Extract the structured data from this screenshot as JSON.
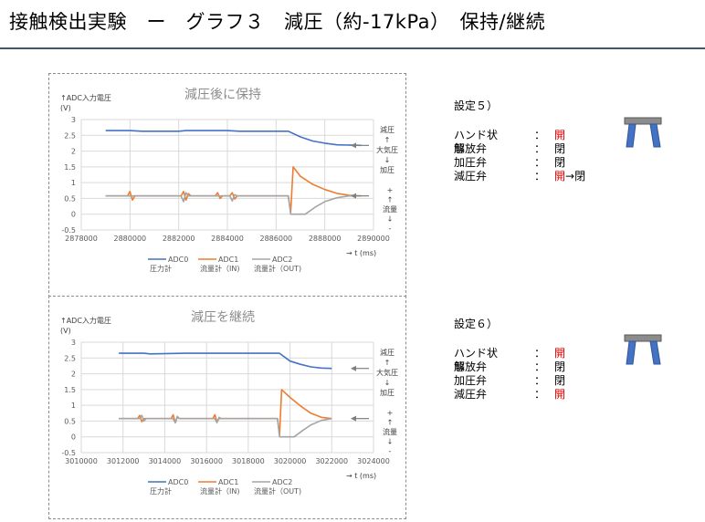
{
  "title": "接触検出実験　ー　グラフ３　減圧（約-17kPa）　保持/継続",
  "colors": {
    "adc0": "#4472c4",
    "adc1": "#ed7d31",
    "adc2": "#a5a5a5",
    "grid": "#d9d9d9",
    "accent_red": "#e00000",
    "hand_gray": "#8c8c8c",
    "hand_blue": "#4472c4"
  },
  "chart_data": [
    {
      "type": "line",
      "title": "減圧後に保持",
      "ylabel": "↑ADC入力電圧\n(V)",
      "xlabel": "→  t (ms)",
      "xlim": [
        2878000,
        2890000
      ],
      "ylim": [
        -0.5,
        3
      ],
      "xticks": [
        "2878000",
        "2880000",
        "2882000",
        "2884000",
        "2886000",
        "2888000",
        "2890000"
      ],
      "yticks": [
        "-0.5",
        "0",
        "0.5",
        "1",
        "1.5",
        "2",
        "2.5",
        "3"
      ],
      "legend": [
        "ADC0\n圧力計",
        "ADC1\n流量計（IN)",
        "ADC2\n流量計（OUT)"
      ],
      "right_annotations": [
        "減圧\n↑\n大気圧\n↓\n加圧",
        "+\n↑\n流量\n↓\n-"
      ],
      "grid": true,
      "series": [
        {
          "name": "ADC0",
          "points": [
            [
              2879000,
              2.65
            ],
            [
              2880000,
              2.65
            ],
            [
              2880500,
              2.63
            ],
            [
              2882000,
              2.63
            ],
            [
              2882300,
              2.65
            ],
            [
              2884000,
              2.65
            ],
            [
              2884500,
              2.63
            ],
            [
              2886500,
              2.63
            ],
            [
              2887000,
              2.45
            ],
            [
              2887500,
              2.32
            ],
            [
              2888000,
              2.25
            ],
            [
              2888500,
              2.2
            ],
            [
              2889500,
              2.18
            ]
          ]
        },
        {
          "name": "ADC1",
          "points": [
            [
              2879000,
              0.58
            ],
            [
              2879900,
              0.58
            ],
            [
              2880000,
              0.72
            ],
            [
              2880100,
              0.45
            ],
            [
              2880200,
              0.58
            ],
            [
              2882100,
              0.58
            ],
            [
              2882200,
              0.72
            ],
            [
              2882300,
              0.45
            ],
            [
              2882400,
              0.65
            ],
            [
              2882500,
              0.58
            ],
            [
              2883500,
              0.58
            ],
            [
              2883600,
              0.68
            ],
            [
              2883700,
              0.5
            ],
            [
              2883800,
              0.58
            ],
            [
              2884100,
              0.58
            ],
            [
              2884200,
              0.68
            ],
            [
              2884300,
              0.48
            ],
            [
              2884400,
              0.58
            ],
            [
              2886500,
              0.58
            ],
            [
              2886600,
              0.05
            ],
            [
              2886700,
              1.5
            ],
            [
              2887000,
              1.2
            ],
            [
              2887500,
              0.95
            ],
            [
              2888000,
              0.78
            ],
            [
              2888500,
              0.66
            ],
            [
              2889000,
              0.6
            ],
            [
              2889500,
              0.58
            ]
          ]
        },
        {
          "name": "ADC2",
          "points": [
            [
              2879000,
              0.58
            ],
            [
              2882100,
              0.58
            ],
            [
              2882200,
              0.4
            ],
            [
              2882300,
              0.68
            ],
            [
              2882400,
              0.58
            ],
            [
              2884100,
              0.58
            ],
            [
              2884200,
              0.42
            ],
            [
              2884300,
              0.62
            ],
            [
              2884400,
              0.58
            ],
            [
              2886500,
              0.58
            ],
            [
              2886600,
              0.0
            ],
            [
              2887200,
              0.0
            ],
            [
              2887600,
              0.22
            ],
            [
              2888000,
              0.4
            ],
            [
              2888500,
              0.52
            ],
            [
              2889000,
              0.58
            ],
            [
              2889500,
              0.58
            ]
          ]
        }
      ]
    },
    {
      "type": "line",
      "title": "減圧を継続",
      "ylabel": "↑ADC入力電圧\n(V)",
      "xlabel": "→  t (ms)",
      "xlim": [
        3010000,
        3024000
      ],
      "ylim": [
        -0.5,
        3
      ],
      "xticks": [
        "3010000",
        "3012000",
        "3014000",
        "3016000",
        "3018000",
        "3020000",
        "3022000",
        "3024000"
      ],
      "yticks": [
        "-0.5",
        "0",
        "0.5",
        "1",
        "1.5",
        "2",
        "2.5",
        "3"
      ],
      "legend": [
        "ADC0\n圧力計",
        "ADC1\n流量計（IN)",
        "ADC2\n流量計（OUT)"
      ],
      "right_annotations": [
        "減圧\n↑\n大気圧\n↓\n加圧",
        "+\n↑\n流量\n↓\n-"
      ],
      "grid": true,
      "series": [
        {
          "name": "ADC0",
          "points": [
            [
              3011800,
              2.65
            ],
            [
              3013000,
              2.65
            ],
            [
              3013300,
              2.63
            ],
            [
              3015000,
              2.65
            ],
            [
              3017000,
              2.65
            ],
            [
              3019000,
              2.65
            ],
            [
              3019500,
              2.65
            ],
            [
              3020000,
              2.4
            ],
            [
              3020500,
              2.3
            ],
            [
              3021000,
              2.22
            ],
            [
              3021500,
              2.18
            ],
            [
              3022000,
              2.17
            ]
          ]
        },
        {
          "name": "ADC1",
          "points": [
            [
              3011800,
              0.58
            ],
            [
              3012700,
              0.58
            ],
            [
              3012800,
              0.68
            ],
            [
              3012900,
              0.48
            ],
            [
              3013000,
              0.58
            ],
            [
              3014300,
              0.58
            ],
            [
              3014400,
              0.7
            ],
            [
              3014500,
              0.45
            ],
            [
              3014600,
              0.62
            ],
            [
              3014700,
              0.58
            ],
            [
              3016300,
              0.58
            ],
            [
              3016400,
              0.7
            ],
            [
              3016500,
              0.48
            ],
            [
              3016600,
              0.58
            ],
            [
              3019400,
              0.58
            ],
            [
              3019500,
              0.05
            ],
            [
              3019600,
              1.5
            ],
            [
              3020000,
              1.25
            ],
            [
              3020500,
              0.98
            ],
            [
              3021000,
              0.75
            ],
            [
              3021500,
              0.62
            ],
            [
              3022000,
              0.58
            ]
          ]
        },
        {
          "name": "ADC2",
          "points": [
            [
              3011800,
              0.58
            ],
            [
              3012800,
              0.58
            ],
            [
              3012900,
              0.68
            ],
            [
              3013000,
              0.5
            ],
            [
              3013100,
              0.58
            ],
            [
              3014400,
              0.58
            ],
            [
              3014500,
              0.45
            ],
            [
              3014600,
              0.65
            ],
            [
              3014700,
              0.58
            ],
            [
              3016400,
              0.58
            ],
            [
              3016500,
              0.45
            ],
            [
              3016600,
              0.62
            ],
            [
              3016700,
              0.58
            ],
            [
              3019400,
              0.58
            ],
            [
              3019500,
              0.0
            ],
            [
              3020200,
              0.0
            ],
            [
              3020600,
              0.2
            ],
            [
              3021000,
              0.38
            ],
            [
              3021500,
              0.52
            ],
            [
              3022000,
              0.58
            ]
          ]
        }
      ]
    }
  ],
  "settings": [
    {
      "heading": "設定５）",
      "rows": [
        {
          "label": "ハンド状態",
          "value": "開",
          "red": "開",
          "rest": ""
        },
        {
          "label": "解放弁",
          "value": "閉",
          "red": "",
          "rest": "閉"
        },
        {
          "label": "加圧弁",
          "value": "閉",
          "red": "",
          "rest": "閉"
        },
        {
          "label": "減圧弁",
          "value": "開→閉",
          "red": "開",
          "rest": "→閉"
        }
      ]
    },
    {
      "heading": "設定６）",
      "rows": [
        {
          "label": "ハンド状態",
          "value": "開",
          "red": "開",
          "rest": ""
        },
        {
          "label": "解放弁",
          "value": "閉",
          "red": "",
          "rest": "閉"
        },
        {
          "label": "加圧弁",
          "value": "閉",
          "red": "",
          "rest": "閉"
        },
        {
          "label": "減圧弁",
          "value": "開",
          "red": "開",
          "rest": ""
        }
      ]
    }
  ],
  "colon": "："
}
